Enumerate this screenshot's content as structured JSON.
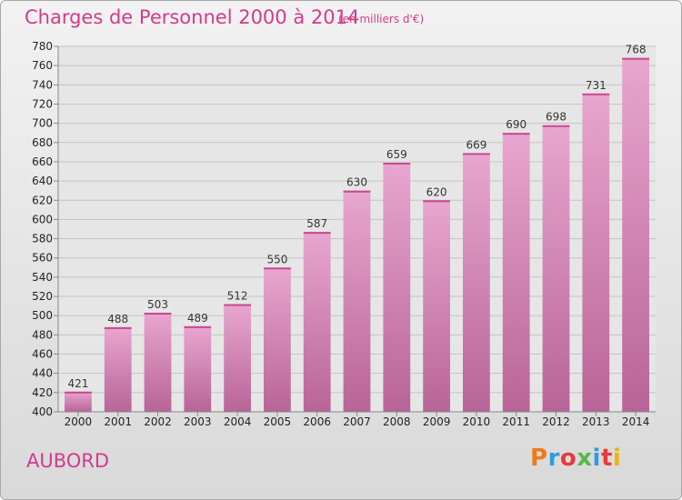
{
  "header": {
    "title": "Charges de Personnel 2000 à 2014",
    "unit": "(en milliers d'€)"
  },
  "footer": {
    "commune": "AUBORD",
    "logo": "Proxiti",
    "logo_colors": [
      "#f07a1a",
      "#2f9be0",
      "#e83a3a",
      "#54b948",
      "#2f9be0",
      "#e83a3a",
      "#f0b400"
    ]
  },
  "colors": {
    "text_accent": "#d43a8c",
    "bar_light": "#e8a6d0",
    "bar_dark": "#b86497"
  },
  "chart_data": {
    "type": "bar",
    "categories": [
      "2000",
      "2001",
      "2002",
      "2003",
      "2004",
      "2005",
      "2006",
      "2007",
      "2008",
      "2009",
      "2010",
      "2011",
      "2012",
      "2013",
      "2014"
    ],
    "values": [
      421,
      488,
      503,
      489,
      512,
      550,
      587,
      630,
      659,
      620,
      669,
      690,
      698,
      731,
      768
    ],
    "ylim": [
      400,
      780
    ],
    "ytick_step": 20,
    "grid": true,
    "xlabel": "",
    "ylabel": ""
  }
}
